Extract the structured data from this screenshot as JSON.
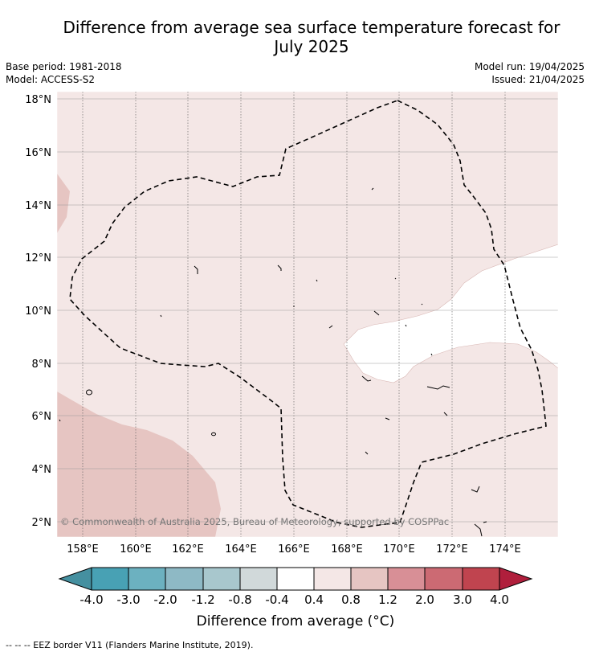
{
  "header": {
    "title_line1": "Difference from average sea surface temperature forecast for",
    "title_line2": "July 2025",
    "base_period": "Base period: 1981-2018",
    "model": "Model: ACCESS-S2",
    "model_run": "Model run: 19/04/2025",
    "issued": "Issued: 21/04/2025"
  },
  "map": {
    "lat_ticks": [
      "18°N",
      "16°N",
      "14°N",
      "12°N",
      "10°N",
      "8°N",
      "6°N",
      "4°N",
      "2°N"
    ],
    "lon_ticks": [
      "158°E",
      "160°E",
      "162°E",
      "164°E",
      "166°E",
      "168°E",
      "170°E",
      "172°E",
      "174°E"
    ],
    "copyright": "© Commonwealth of Australia 2025, Bureau of Meteorology, supported by COSPPac",
    "colors": {
      "background_anomaly": "#f4e7e6",
      "warm_anomaly": "#e6c5c2",
      "neutral": "#ffffff",
      "eez_border": "#000000"
    }
  },
  "colorbar": {
    "label": "Difference from average (°C)",
    "ticks": [
      "-4.0",
      "-3.0",
      "-2.0",
      "-1.2",
      "-0.8",
      "-0.4",
      "0.4",
      "0.8",
      "1.2",
      "2.0",
      "3.0",
      "4.0"
    ],
    "colors": [
      "#4590a0",
      "#48a1b4",
      "#6cb1c0",
      "#8eb9c5",
      "#a8c7cd",
      "#d1d9da",
      "#ffffff",
      "#f4e7e6",
      "#e6c5c2",
      "#d88f96",
      "#cc6a73",
      "#c0444f",
      "#b01f3c"
    ]
  },
  "footnote": "--  --  -- EEZ border V11 (Flanders Marine Institute, 2019)."
}
